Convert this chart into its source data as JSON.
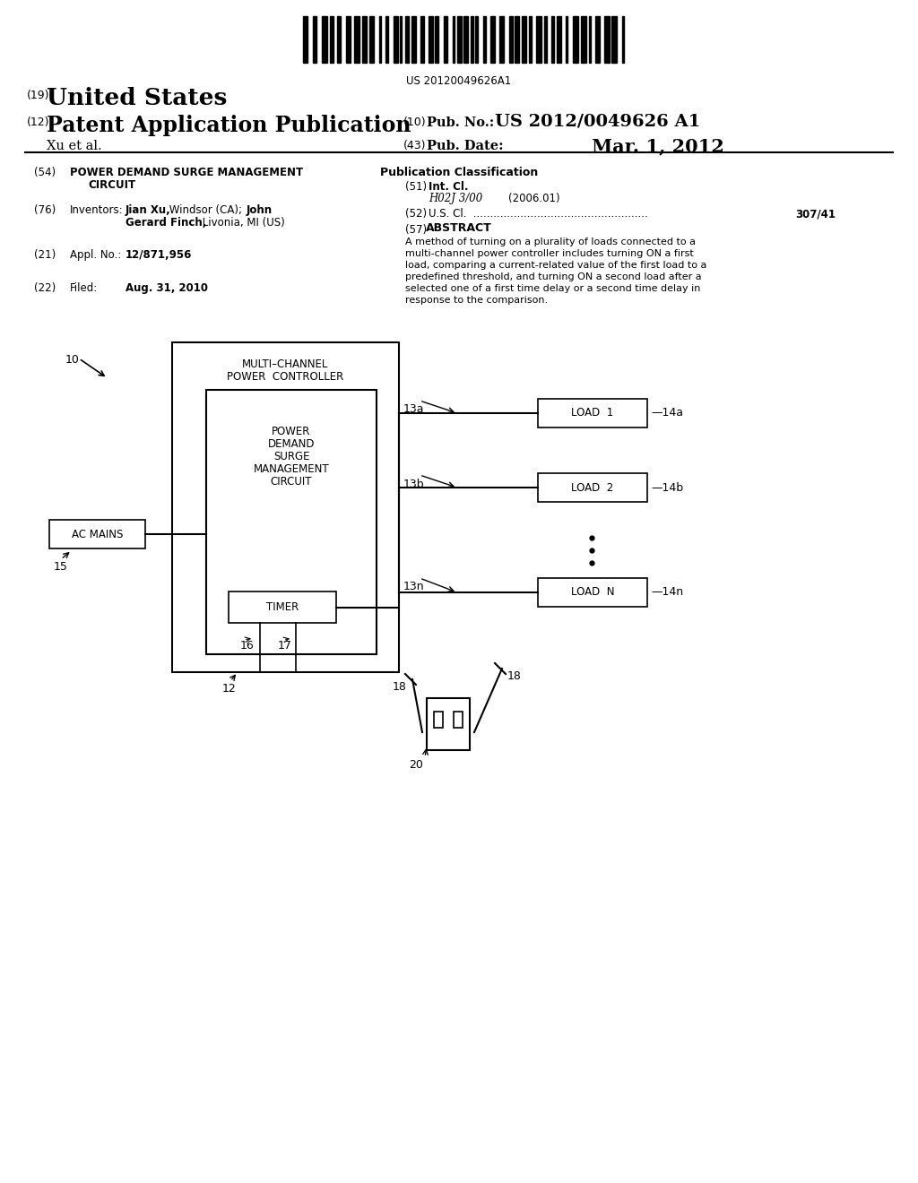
{
  "bg_color": "#ffffff",
  "barcode_text": "US 20120049626A1",
  "patent_label_19": "(19)",
  "patent_us": "United States",
  "patent_label_12": "(12)",
  "patent_app_pub": "Patent Application Publication",
  "patent_author": "Xu et al.",
  "patent_label_10": "(10)",
  "pub_no_label": "Pub. No.:",
  "pub_no_val": "US 2012/0049626 A1",
  "patent_label_43": "(43)",
  "pub_date_label": "Pub. Date:",
  "pub_date_val": "Mar. 1, 2012",
  "label_54": "(54)",
  "label_76": "(76)",
  "inventors_label": "Inventors:",
  "label_21": "(21)",
  "appl_label": "Appl. No.:",
  "appl_val": "12/871,956",
  "label_22": "(22)",
  "filed_label": "Filed:",
  "filed_val": "Aug. 31, 2010",
  "pub_class_title": "Publication Classification",
  "label_51": "(51)",
  "int_cl_label": "Int. Cl.",
  "int_cl_val": "H02J 3/00",
  "int_cl_year": "(2006.01)",
  "label_52": "(52)",
  "us_cl_val": "307/41",
  "label_57": "(57)",
  "abstract_title": "ABSTRACT",
  "abstract_text": "A method of turning on a plurality of loads connected to a multi-channel power controller includes turning ON a first load, comparing a current-related value of the first load to a predefined threshold, and turning ON a second load after a selected one of a first time delay or a second time delay in response to the comparison."
}
